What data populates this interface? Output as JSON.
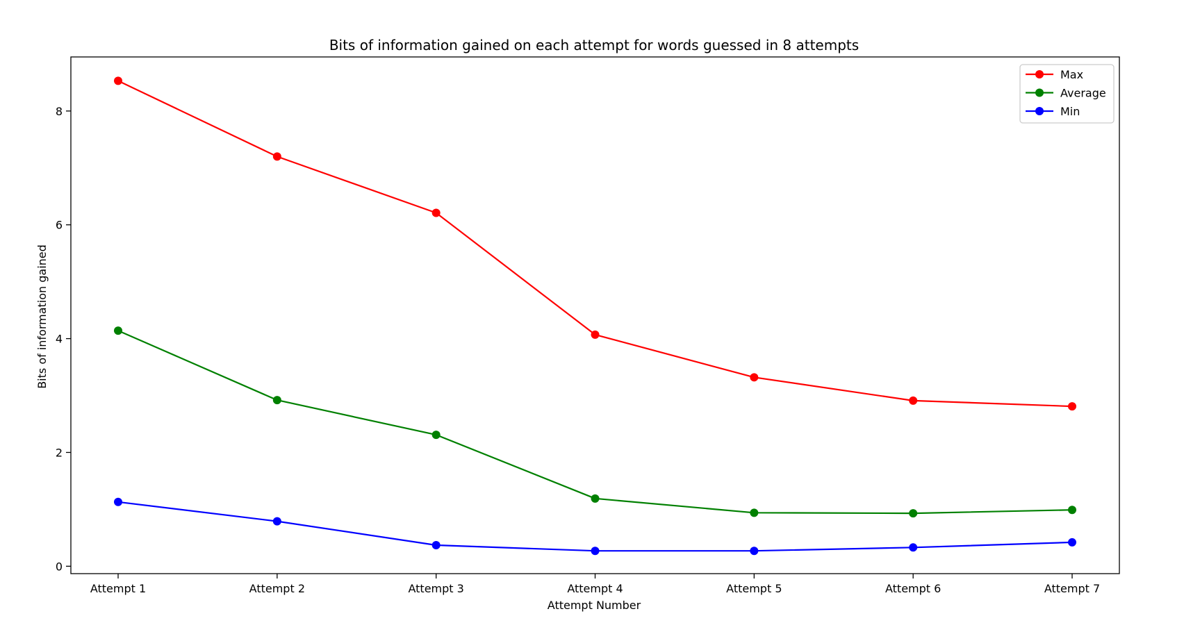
{
  "chart_data": {
    "type": "line",
    "title": "Bits of information gained on each attempt for words guessed in 8 attempts",
    "xlabel": "Attempt Number",
    "ylabel": "Bits of information gained",
    "categories": [
      "Attempt 1",
      "Attempt 2",
      "Attempt 3",
      "Attempt 4",
      "Attempt 5",
      "Attempt 6",
      "Attempt 7"
    ],
    "ylim": [
      -0.13,
      8.95
    ],
    "yticks": [
      0,
      2,
      4,
      6,
      8
    ],
    "grid": false,
    "legend_position": "top-right",
    "series": [
      {
        "name": "Max",
        "color": "#ff0000",
        "marker": "circle",
        "values": [
          8.53,
          7.2,
          6.21,
          4.07,
          3.32,
          2.91,
          2.81
        ]
      },
      {
        "name": "Average",
        "color": "#008000",
        "marker": "circle",
        "values": [
          4.14,
          2.92,
          2.31,
          1.19,
          0.94,
          0.93,
          0.99
        ]
      },
      {
        "name": "Min",
        "color": "#0000ff",
        "marker": "circle",
        "values": [
          1.13,
          0.79,
          0.37,
          0.27,
          0.27,
          0.33,
          0.42
        ]
      }
    ]
  }
}
